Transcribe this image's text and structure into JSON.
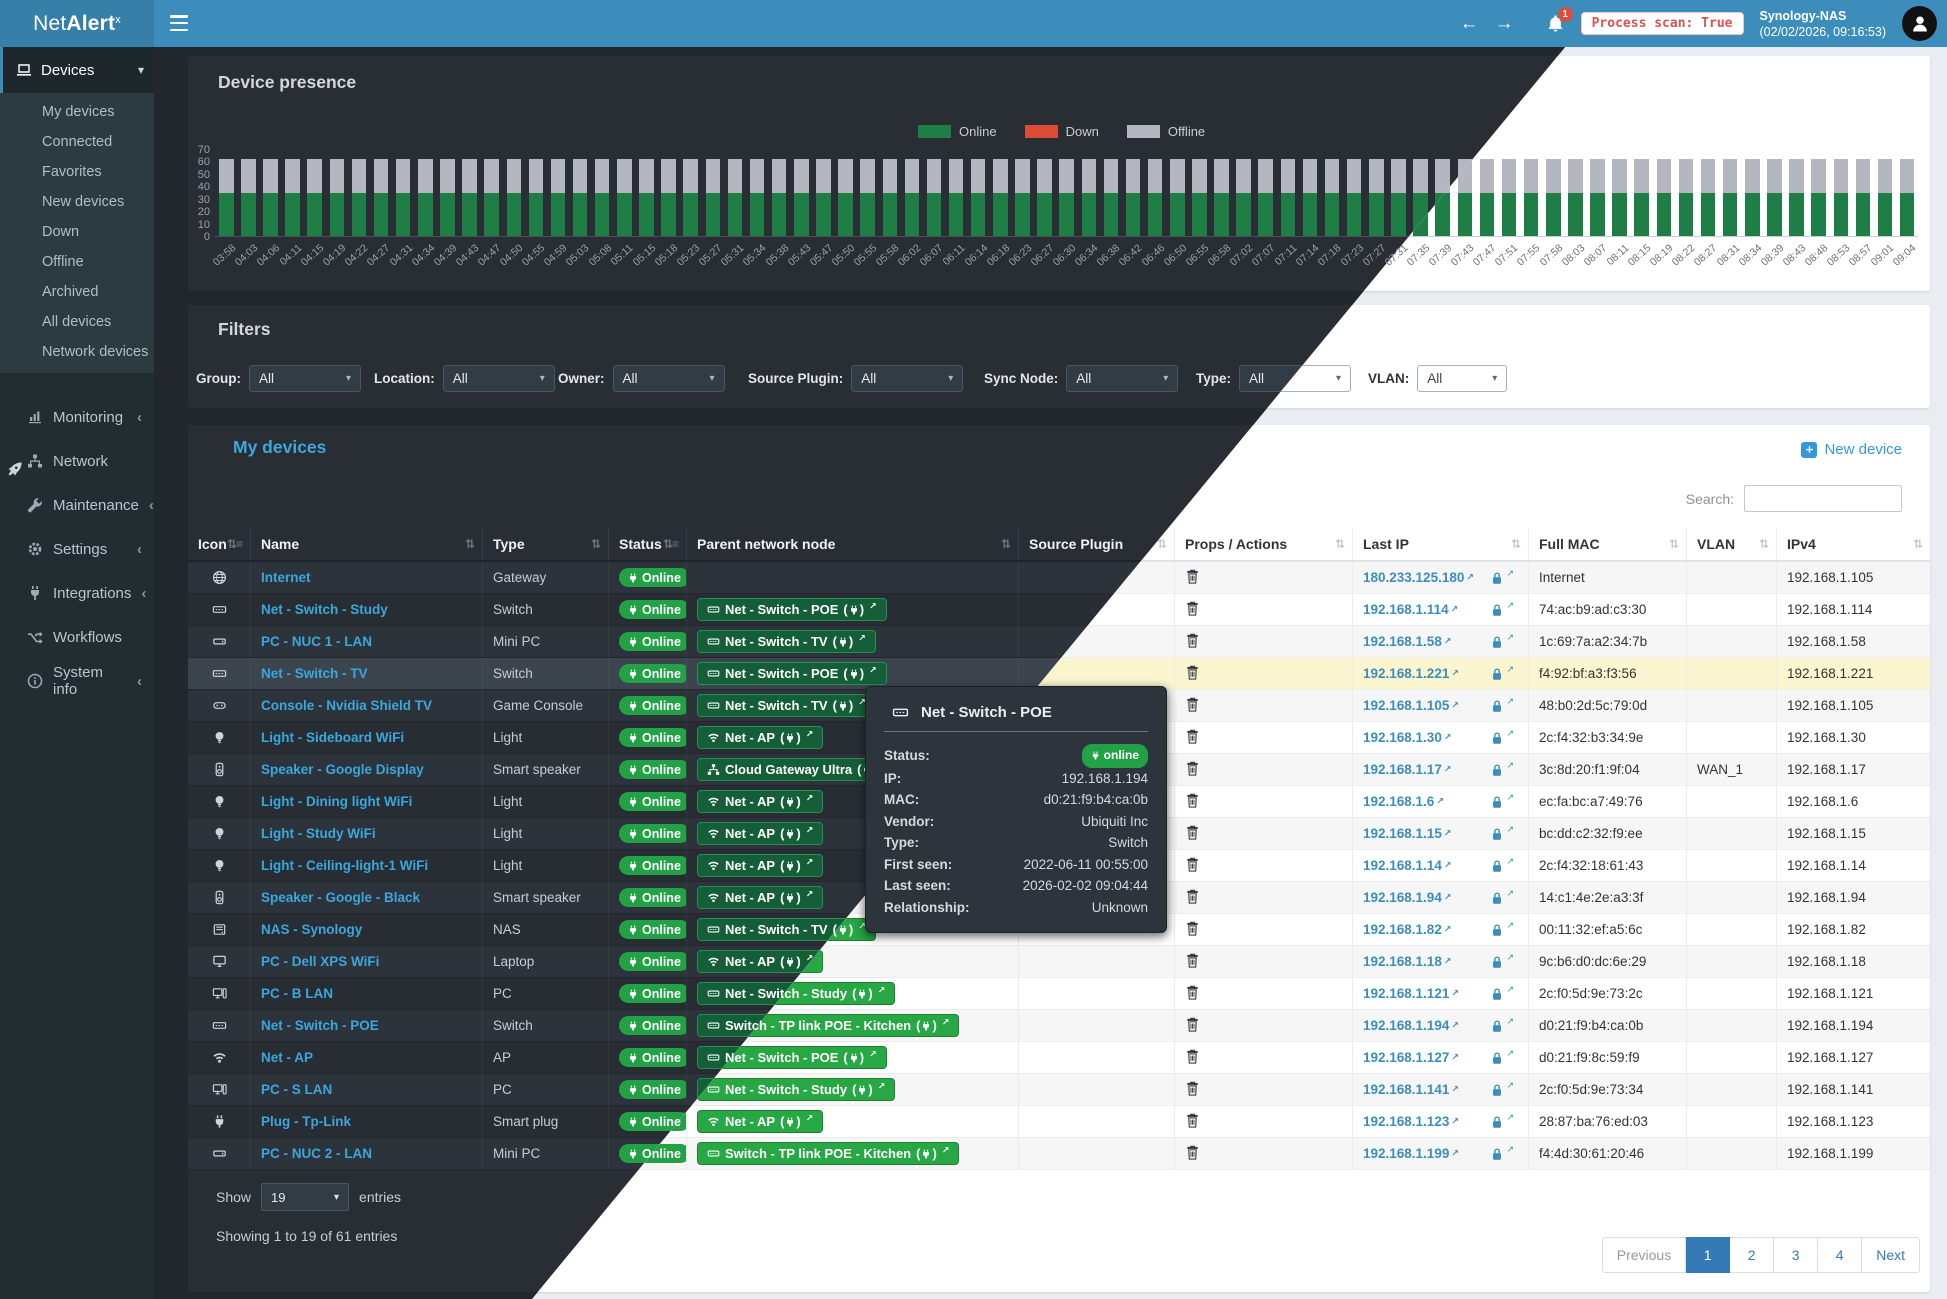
{
  "topbar": {
    "logo_prefix": "Net",
    "logo_bold": "Alert",
    "logo_sup": "x",
    "badge": "1",
    "process_scan": "Process scan: True",
    "host": "Synology-NAS",
    "datetime": "(02/02/2026, 09:16:53)"
  },
  "sidebar": {
    "devices": {
      "label": "Devices",
      "children": [
        "My devices",
        "Connected",
        "Favorites",
        "New devices",
        "Down",
        "Offline",
        "Archived",
        "All devices",
        "Network devices"
      ]
    },
    "sections": [
      {
        "icon": "monitoring",
        "label": "Monitoring",
        "chevron": true
      },
      {
        "icon": "network",
        "label": "Network",
        "chevron": false
      },
      {
        "icon": "maintenance",
        "label": "Maintenance",
        "chevron": true
      },
      {
        "icon": "settings",
        "label": "Settings",
        "chevron": true
      },
      {
        "icon": "integrations",
        "label": "Integrations",
        "chevron": true
      },
      {
        "icon": "workflows",
        "label": "Workflows",
        "chevron": false
      },
      {
        "icon": "systeminfo",
        "label": "System info",
        "chevron": true
      }
    ]
  },
  "chart_data": {
    "type": "bar",
    "stacked": true,
    "title": "Device presence",
    "xlabel": "",
    "ylabel": "",
    "ylim": [
      0,
      70
    ],
    "y_ticks": [
      70,
      60,
      50,
      40,
      30,
      20,
      10,
      0
    ],
    "grid": false,
    "legend_position": "top",
    "legend": [
      {
        "label": "Online",
        "color": "#1e7e45"
      },
      {
        "label": "Down",
        "color": "#dd4b39"
      },
      {
        "label": "Offline",
        "color": "#b4b7bf"
      }
    ],
    "categories": [
      "03:58",
      "04:03",
      "04:06",
      "04:11",
      "04:15",
      "04:19",
      "04:22",
      "04:27",
      "04:31",
      "04:34",
      "04:39",
      "04:43",
      "04:47",
      "04:50",
      "04:55",
      "04:59",
      "05:03",
      "05:08",
      "05:11",
      "05:15",
      "05:18",
      "05:23",
      "05:27",
      "05:31",
      "05:34",
      "05:38",
      "05:43",
      "05:47",
      "05:50",
      "05:55",
      "05:58",
      "06:02",
      "06:07",
      "06:11",
      "06:14",
      "06:18",
      "06:23",
      "06:27",
      "06:30",
      "06:34",
      "06:38",
      "06:42",
      "06:46",
      "06:50",
      "06:55",
      "06:58",
      "07:02",
      "07:07",
      "07:11",
      "07:14",
      "07:18",
      "07:23",
      "07:27",
      "07:31",
      "07:35",
      "07:39",
      "07:43",
      "07:47",
      "07:51",
      "07:55",
      "07:58",
      "08:03",
      "08:07",
      "08:11",
      "08:15",
      "08:19",
      "08:22",
      "08:27",
      "08:31",
      "08:34",
      "08:39",
      "08:43",
      "08:48",
      "08:53",
      "08:57",
      "09:01",
      "09:04"
    ],
    "series": [
      {
        "name": "Online",
        "color": "#1e7e45",
        "uniform_value": 35
      },
      {
        "name": "Offline",
        "color": "#b4b7bf",
        "uniform_value": 27
      },
      {
        "name": "Down",
        "color": "#dd4b39",
        "uniform_value": 0
      }
    ]
  },
  "filters": {
    "title": "Filters",
    "items": [
      {
        "label": "Group:",
        "value": "All"
      },
      {
        "label": "Location:",
        "value": "All"
      },
      {
        "label": "Owner:",
        "value": "All"
      },
      {
        "label": "Source Plugin:",
        "value": "All"
      },
      {
        "label": "Sync Node:",
        "value": "All"
      },
      {
        "label": "Type:",
        "value": "All"
      },
      {
        "label": "VLAN:",
        "value": "All"
      }
    ]
  },
  "devices_panel": {
    "title": "My devices",
    "new_device": "New device",
    "search_label": "Search:",
    "show_label": "Show",
    "show_value": "19",
    "entries_label": "entries",
    "summary": "Showing 1 to 19 of 61 entries"
  },
  "table": {
    "columns": [
      {
        "label": "Icon",
        "sorted": true
      },
      {
        "label": "Name",
        "sorted": false
      },
      {
        "label": "Type",
        "sorted": false
      },
      {
        "label": "Status",
        "sorted": true
      },
      {
        "label": "Parent network node",
        "sorted": false
      },
      {
        "label": "Source Plugin",
        "sorted": false
      },
      {
        "label": "Props / Actions",
        "sorted": false
      },
      {
        "label": "Last IP",
        "sorted": false
      },
      {
        "label": "Full MAC",
        "sorted": false
      },
      {
        "label": "VLAN",
        "sorted": false
      },
      {
        "label": "IPv4",
        "sorted": false
      }
    ],
    "rows": [
      {
        "icon": "globe",
        "name": "Internet",
        "type": "Gateway",
        "status": "Online",
        "parent": null,
        "source_plugin": "",
        "last_ip": "180.233.125.180",
        "mac": "Internet",
        "vlan": "",
        "ipv4": "192.168.1.105",
        "selected": false
      },
      {
        "icon": "switch",
        "name": "Net - Switch - Study",
        "type": "Switch",
        "status": "Online",
        "parent": {
          "icon": "switch",
          "label": "Net - Switch - POE"
        },
        "source_plugin": "",
        "last_ip": "192.168.1.114",
        "mac": "74:ac:b9:ad:c3:30",
        "vlan": "",
        "ipv4": "192.168.1.114",
        "selected": false
      },
      {
        "icon": "minipc",
        "name": "PC - NUC 1 - LAN",
        "type": "Mini PC",
        "status": "Online",
        "parent": {
          "icon": "switch",
          "label": "Net - Switch - TV"
        },
        "source_plugin": "",
        "last_ip": "192.168.1.58",
        "mac": "1c:69:7a:a2:34:7b",
        "vlan": "",
        "ipv4": "192.168.1.58",
        "selected": false
      },
      {
        "icon": "switch",
        "name": "Net - Switch - TV",
        "type": "Switch",
        "status": "Online",
        "parent": {
          "icon": "switch",
          "label": "Net - Switch - POE"
        },
        "source_plugin": "",
        "last_ip": "192.168.1.221",
        "mac": "f4:92:bf:a3:f3:56",
        "vlan": "",
        "ipv4": "192.168.1.221",
        "selected": true
      },
      {
        "icon": "gamepad",
        "name": "Console - Nvidia Shield TV",
        "type": "Game Console",
        "status": "Online",
        "parent": {
          "icon": "switch",
          "label": "Net - Switch - TV"
        },
        "source_plugin": "",
        "last_ip": "192.168.1.105",
        "mac": "48:b0:2d:5c:79:0d",
        "vlan": "",
        "ipv4": "192.168.1.105",
        "selected": false
      },
      {
        "icon": "bulb",
        "name": "Light - Sideboard WiFi",
        "type": "Light",
        "status": "Online",
        "parent": {
          "icon": "wifi",
          "label": "Net - AP"
        },
        "source_plugin": "",
        "last_ip": "192.168.1.30",
        "mac": "2c:f4:32:b3:34:9e",
        "vlan": "",
        "ipv4": "192.168.1.30",
        "selected": false
      },
      {
        "icon": "speaker",
        "name": "Speaker - Google Display",
        "type": "Smart speaker",
        "status": "Online",
        "parent": {
          "icon": "sitemap",
          "label": "Cloud Gateway Ultra"
        },
        "source_plugin": "",
        "last_ip": "192.168.1.17",
        "mac": "3c:8d:20:f1:9f:04",
        "vlan": "WAN_1",
        "ipv4": "192.168.1.17",
        "selected": false
      },
      {
        "icon": "bulb",
        "name": "Light - Dining light WiFi",
        "type": "Light",
        "status": "Online",
        "parent": {
          "icon": "wifi",
          "label": "Net - AP"
        },
        "source_plugin": "",
        "last_ip": "192.168.1.6",
        "mac": "ec:fa:bc:a7:49:76",
        "vlan": "",
        "ipv4": "192.168.1.6",
        "selected": false
      },
      {
        "icon": "bulb",
        "name": "Light - Study WiFi",
        "type": "Light",
        "status": "Online",
        "parent": {
          "icon": "wifi",
          "label": "Net - AP"
        },
        "source_plugin": "",
        "last_ip": "192.168.1.15",
        "mac": "bc:dd:c2:32:f9:ee",
        "vlan": "",
        "ipv4": "192.168.1.15",
        "selected": false
      },
      {
        "icon": "bulb",
        "name": "Light - Ceiling-light-1 WiFi",
        "type": "Light",
        "status": "Online",
        "parent": {
          "icon": "wifi",
          "label": "Net - AP"
        },
        "source_plugin": "",
        "last_ip": "192.168.1.14",
        "mac": "2c:f4:32:18:61:43",
        "vlan": "",
        "ipv4": "192.168.1.14",
        "selected": false
      },
      {
        "icon": "speaker",
        "name": "Speaker - Google - Black",
        "type": "Smart speaker",
        "status": "Online",
        "parent": {
          "icon": "wifi",
          "label": "Net - AP"
        },
        "source_plugin": "",
        "last_ip": "192.168.1.94",
        "mac": "14:c1:4e:2e:a3:3f",
        "vlan": "",
        "ipv4": "192.168.1.94",
        "selected": false
      },
      {
        "icon": "nas",
        "name": "NAS - Synology",
        "type": "NAS",
        "status": "Online",
        "parent": {
          "icon": "switch",
          "label": "Net - Switch - TV"
        },
        "source_plugin": "",
        "last_ip": "192.168.1.82",
        "mac": "00:11:32:ef:a5:6c",
        "vlan": "",
        "ipv4": "192.168.1.82",
        "selected": false
      },
      {
        "icon": "monitor",
        "name": "PC - Dell XPS WiFi",
        "type": "Laptop",
        "status": "Online",
        "parent": {
          "icon": "wifi",
          "label": "Net - AP"
        },
        "source_plugin": "",
        "last_ip": "192.168.1.18",
        "mac": "9c:b6:d0:dc:6e:29",
        "vlan": "",
        "ipv4": "192.168.1.18",
        "selected": false
      },
      {
        "icon": "pc",
        "name": "PC - B LAN",
        "type": "PC",
        "status": "Online",
        "parent": {
          "icon": "switch",
          "label": "Net - Switch - Study"
        },
        "source_plugin": "",
        "last_ip": "192.168.1.121",
        "mac": "2c:f0:5d:9e:73:2c",
        "vlan": "",
        "ipv4": "192.168.1.121",
        "selected": false
      },
      {
        "icon": "switch",
        "name": "Net - Switch - POE",
        "type": "Switch",
        "status": "Online",
        "parent": {
          "icon": "switch",
          "label": "Switch - TP link POE - Kitchen"
        },
        "source_plugin": "",
        "last_ip": "192.168.1.194",
        "mac": "d0:21:f9:b4:ca:0b",
        "vlan": "",
        "ipv4": "192.168.1.194",
        "selected": false
      },
      {
        "icon": "wifi",
        "name": "Net - AP",
        "type": "AP",
        "status": "Online",
        "parent": {
          "icon": "switch",
          "label": "Net - Switch - POE"
        },
        "source_plugin": "",
        "last_ip": "192.168.1.127",
        "mac": "d0:21:f9:8c:59:f9",
        "vlan": "",
        "ipv4": "192.168.1.127",
        "selected": false
      },
      {
        "icon": "pc",
        "name": "PC - S LAN",
        "type": "PC",
        "status": "Online",
        "parent": {
          "icon": "switch",
          "label": "Net - Switch - Study"
        },
        "source_plugin": "",
        "last_ip": "192.168.1.141",
        "mac": "2c:f0:5d:9e:73:34",
        "vlan": "",
        "ipv4": "192.168.1.141",
        "selected": false
      },
      {
        "icon": "smartplug",
        "name": "Plug - Tp-Link",
        "type": "Smart plug",
        "status": "Online",
        "parent": {
          "icon": "wifi",
          "label": "Net - AP"
        },
        "source_plugin": "",
        "last_ip": "192.168.1.123",
        "mac": "28:87:ba:76:ed:03",
        "vlan": "",
        "ipv4": "192.168.1.123",
        "selected": false
      },
      {
        "icon": "minipc",
        "name": "PC - NUC 2 - LAN",
        "type": "Mini PC",
        "status": "Online",
        "parent": {
          "icon": "switch",
          "label": "Switch - TP link POE - Kitchen"
        },
        "source_plugin": "",
        "last_ip": "192.168.1.199",
        "mac": "f4:4d:30:61:20:46",
        "vlan": "",
        "ipv4": "192.168.1.199",
        "selected": false
      }
    ]
  },
  "pagination": {
    "items": [
      {
        "label": "Previous",
        "active": false,
        "disabled": true
      },
      {
        "label": "1",
        "active": true,
        "disabled": false
      },
      {
        "label": "2",
        "active": false,
        "disabled": false
      },
      {
        "label": "3",
        "active": false,
        "disabled": false
      },
      {
        "label": "4",
        "active": false,
        "disabled": false
      },
      {
        "label": "Next",
        "active": false,
        "disabled": false
      }
    ]
  },
  "tooltip": {
    "icon": "switch",
    "title": "Net - Switch - POE",
    "fields": [
      {
        "label": "Status:",
        "value": "online",
        "badge": true
      },
      {
        "label": "IP:",
        "value": "192.168.1.194"
      },
      {
        "label": "MAC:",
        "value": "d0:21:f9:b4:ca:0b"
      },
      {
        "label": "Vendor:",
        "value": "Ubiquiti Inc"
      },
      {
        "label": "Type:",
        "value": "Switch"
      },
      {
        "label": "First seen:",
        "value": "2022-06-11 00:55:00"
      },
      {
        "label": "Last seen:",
        "value": "2026-02-02 09:04:44"
      },
      {
        "label": "Relationship:",
        "value": "Unknown"
      }
    ]
  },
  "colors": {
    "topbar": "#3c8dbc",
    "sidebar": "#222d32",
    "online_green": "#22a146",
    "parent_btn_dark": "#155f38",
    "parent_btn_light": "#28a745",
    "alert_red": "#dd4b39",
    "link_blue": "#3aa7dd",
    "highlight_row_light": "#fbf6d0"
  }
}
